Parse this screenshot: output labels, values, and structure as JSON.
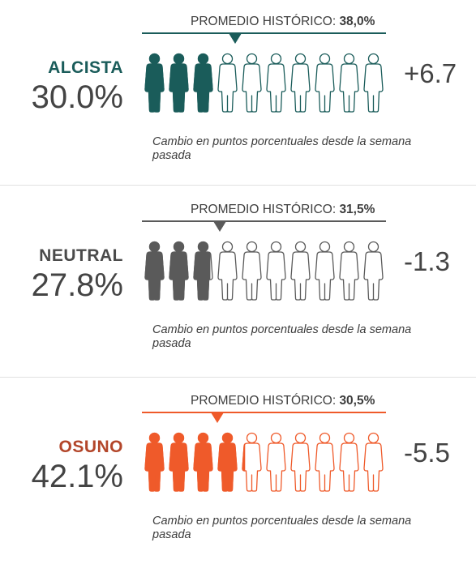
{
  "chart_data": {
    "type": "icon-array",
    "icon_count": 10,
    "panels": [
      {
        "label": "ALCISTA",
        "value": 30.0,
        "value_text": "30.0%",
        "avg_label": "PROMEDIO HISTÓRICO:",
        "avg_value": 38.0,
        "avg_text": "38,0%",
        "change_text": "+6.7",
        "note": "Cambio en puntos porcentuales desde la semana pasada",
        "color": "#1a5c5a",
        "label_color": "#1a5c5a",
        "icon": "person-icon"
      },
      {
        "label": "NEUTRAL",
        "value": 27.8,
        "value_text": "27.8%",
        "avg_label": "PROMEDIO HISTÓRICO:",
        "avg_value": 31.5,
        "avg_text": "31,5%",
        "change_text": "-1.3",
        "note": "Cambio en puntos porcentuales desde la semana pasada",
        "color": "#5a5a5a",
        "label_color": "#4a4a4a",
        "icon": "person-icon"
      },
      {
        "label": "OSUNO",
        "value": 42.1,
        "value_text": "42.1%",
        "avg_label": "PROMEDIO HISTÓRICO:",
        "avg_value": 30.5,
        "avg_text": "30,5%",
        "change_text": "-5.5",
        "note": "Cambio en puntos porcentuales desde la semana pasada",
        "color": "#ef5a2a",
        "label_color": "#b3462a",
        "icon": "person-icon"
      }
    ]
  }
}
